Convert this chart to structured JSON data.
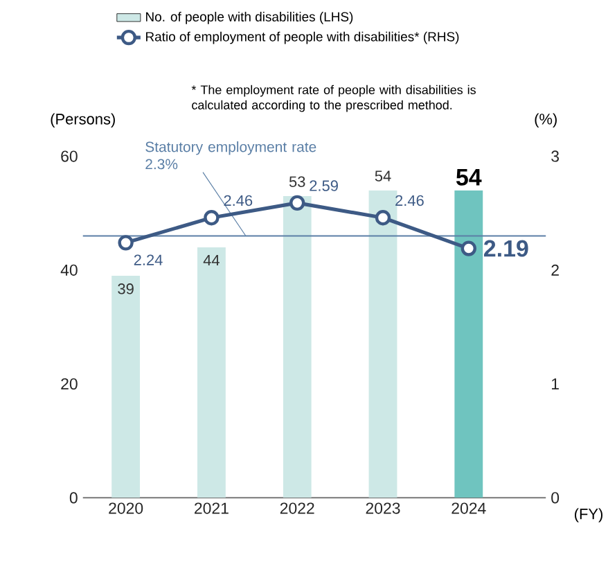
{
  "chart_data": {
    "type": "bar",
    "categories": [
      "2020",
      "2021",
      "2022",
      "2023",
      "2024"
    ],
    "series": [
      {
        "name": "No. of people with disabilities (LHS)",
        "colors": [
          "#cde8e6",
          "#cde8e6",
          "#cde8e6",
          "#cde8e6",
          "#6fc4bf"
        ],
        "values": [
          39,
          44,
          53,
          54,
          54
        ]
      },
      {
        "name": "Ratio of employment of people with disabilities* (RHS)",
        "type": "line",
        "axis": "y2",
        "color": "#3d5a85",
        "values": [
          2.24,
          2.46,
          2.59,
          2.46,
          2.19
        ]
      }
    ],
    "ylim": [
      0,
      60
    ],
    "yticks": [
      0,
      20,
      40,
      60
    ],
    "y2lim": [
      0,
      3
    ],
    "y2ticks": [
      0,
      1,
      2,
      3
    ],
    "xlabel": "(FY)",
    "ylabel": "(Persons)",
    "y2label": "(%)",
    "ref_lines": [
      {
        "axis": "y2",
        "value": 2.3,
        "label": "Statutory employment rate 2.3%",
        "color": "#5b7fa6"
      }
    ],
    "annotations": [
      "* The employment rate of people with disabilities is calculated according to the prescribed method."
    ],
    "data_labels": true,
    "legend": "top",
    "marker": "circle",
    "grid": false
  }
}
